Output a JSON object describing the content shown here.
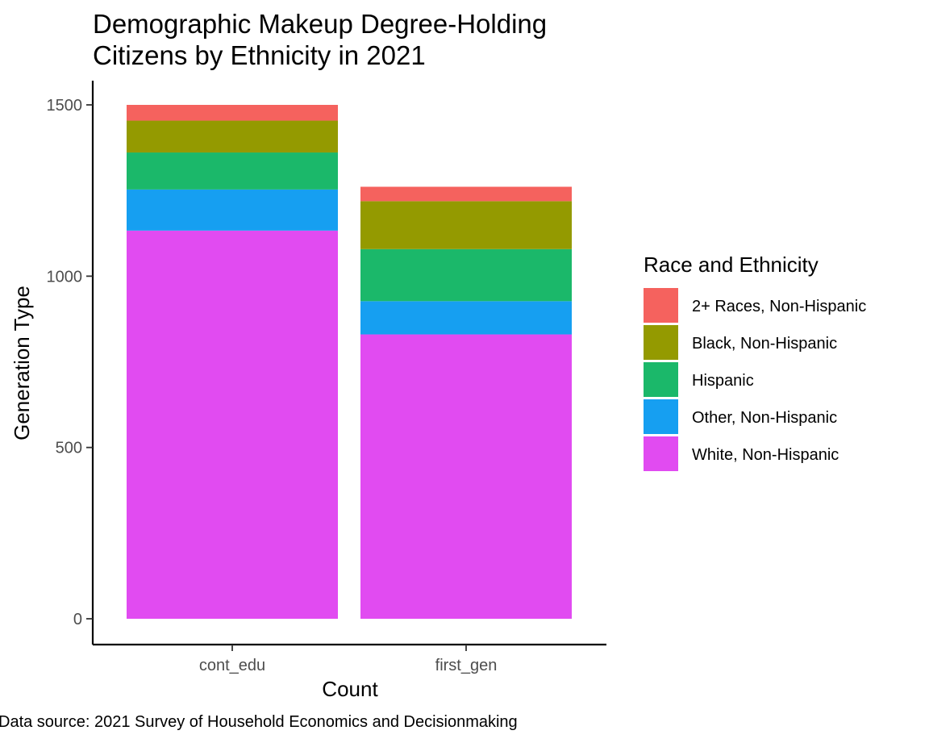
{
  "chart_data": {
    "type": "bar",
    "stacked": true,
    "title_lines": [
      "Demographic Makeup Degree-Holding",
      "Citizens by Ethnicity in 2021"
    ],
    "xlabel": "Count",
    "ylabel": "Generation Type",
    "caption": "Data source: 2021 Survey of Household Economics and Decisionmaking",
    "categories": [
      "cont_edu",
      "first_gen"
    ],
    "ylim": [
      0,
      1580
    ],
    "yticks": [
      0,
      500,
      1000,
      1500
    ],
    "grid": false,
    "legend": {
      "title": "Race and Ethnicity",
      "position": "right"
    },
    "series": [
      {
        "name": "White, Non-Hispanic",
        "color": "#E14BF1",
        "values": [
          1133,
          830
        ]
      },
      {
        "name": "Other, Non-Hispanic",
        "color": "#169FF1",
        "values": [
          120,
          97
        ]
      },
      {
        "name": "Hispanic",
        "color": "#1BB86A",
        "values": [
          108,
          152
        ]
      },
      {
        "name": "Black, Non-Hispanic",
        "color": "#949A00",
        "values": [
          93,
          140
        ]
      },
      {
        "name": "2+ Races, Non-Hispanic",
        "color": "#F5625E",
        "values": [
          46,
          42
        ]
      }
    ],
    "legend_order": [
      "2+ Races, Non-Hispanic",
      "Black, Non-Hispanic",
      "Hispanic",
      "Other, Non-Hispanic",
      "White, Non-Hispanic"
    ]
  }
}
